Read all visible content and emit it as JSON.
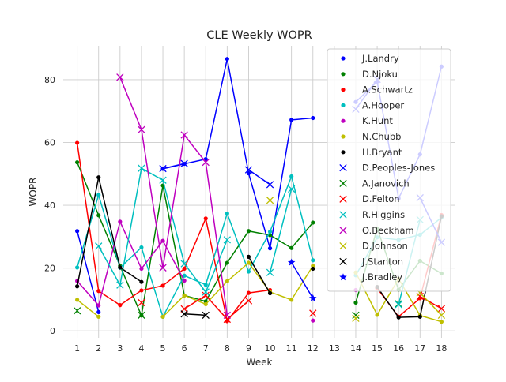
{
  "chart_data": {
    "type": "line",
    "title": "CLE Weekly WOPR",
    "xlabel": "Week",
    "ylabel": "WOPR",
    "xlim": [
      0.35,
      18.65
    ],
    "ylim": [
      -2.2,
      90.8
    ],
    "xticks": [
      1,
      2,
      3,
      4,
      5,
      6,
      7,
      8,
      9,
      10,
      11,
      12,
      13,
      14,
      15,
      16,
      17,
      18
    ],
    "yticks": [
      0,
      20,
      40,
      60,
      80
    ],
    "grid": true,
    "legend_position": "upper right",
    "series": [
      {
        "name": "J.Landry",
        "color": "#0000ff",
        "marker": "dot",
        "x": [
          1,
          2,
          5,
          6,
          7,
          8,
          9,
          10,
          11,
          12,
          14,
          15,
          16,
          17,
          18
        ],
        "y": [
          31.8,
          6.0,
          51.6,
          53.2,
          54.7,
          86.6,
          50.2,
          26.3,
          67.2,
          67.8,
          72.9,
          79.4,
          42.2,
          56.2,
          84.2
        ]
      },
      {
        "name": "D.Njoku",
        "color": "#008000",
        "marker": "dot",
        "x": [
          1,
          2,
          3,
          4,
          5,
          6,
          7,
          8,
          9,
          10,
          11,
          12,
          14,
          15,
          16,
          17,
          18
        ],
        "y": [
          53.7,
          36.8,
          20.7,
          4.9,
          46.3,
          11.3,
          9.4,
          21.7,
          31.8,
          30.5,
          26.4,
          34.5,
          9.0,
          32.6,
          13.1,
          22.3,
          18.3
        ]
      },
      {
        "name": "A.Schwartz",
        "color": "#ff0000",
        "marker": "dot",
        "x": [
          1,
          2,
          3,
          4,
          5,
          6,
          7,
          8,
          9,
          10,
          15,
          16,
          17,
          18
        ],
        "y": [
          59.9,
          12.7,
          8.2,
          12.9,
          14.4,
          19.8,
          35.8,
          3.1,
          12.1,
          13.0,
          13.6,
          4.5,
          10.4,
          36.9
        ]
      },
      {
        "name": "A.Hooper",
        "color": "#00bfbf",
        "marker": "dot",
        "x": [
          1,
          2,
          3,
          4,
          5,
          6,
          7,
          8,
          9,
          10,
          11,
          12,
          14,
          15,
          16,
          17,
          18
        ],
        "y": [
          20.2,
          43.3,
          20.1,
          26.6,
          4.5,
          17.6,
          14.7,
          37.4,
          18.9,
          31.6,
          49.2,
          22.5,
          17.7,
          29.8,
          29.0,
          30.6,
          36.1
        ]
      },
      {
        "name": "K.Hunt",
        "color": "#bf00bf",
        "marker": "dot",
        "x": [
          1,
          2,
          3,
          4,
          5,
          6,
          12,
          14
        ],
        "y": [
          15.9,
          8.1,
          34.8,
          19.8,
          28.7,
          16.0,
          3.3,
          13.0
        ]
      },
      {
        "name": "N.Chubb",
        "color": "#bfbf00",
        "marker": "dot",
        "x": [
          1,
          2,
          5,
          6,
          7,
          8,
          9,
          10,
          11,
          12,
          14,
          15,
          16,
          17,
          18
        ],
        "y": [
          9.9,
          4.5,
          4.5,
          11.3,
          8.5,
          15.8,
          21.7,
          12.4,
          9.9,
          20.7,
          18.6,
          5.1,
          16.6,
          4.9,
          2.9
        ]
      },
      {
        "name": "H.Bryant",
        "color": "#000000",
        "marker": "dot",
        "x": [
          1,
          2,
          3,
          4,
          9,
          10,
          12,
          15,
          16,
          17,
          18
        ],
        "y": [
          14.2,
          48.9,
          20.2,
          15.6,
          23.6,
          12.0,
          19.8,
          14.0,
          4.3,
          4.5,
          36.5
        ]
      },
      {
        "name": "D.Peoples-Jones",
        "color": "#0000ff",
        "marker": "x",
        "x": [
          5,
          6,
          9,
          10,
          14,
          15,
          17,
          18
        ],
        "y": [
          51.7,
          53.3,
          51.3,
          46.6,
          70.6,
          80.1,
          42.4,
          28.2
        ]
      },
      {
        "name": "A.Janovich",
        "color": "#008000",
        "marker": "x",
        "x": [
          1,
          4,
          14,
          16
        ],
        "y": [
          6.4,
          5.0,
          5.0,
          8.6
        ]
      },
      {
        "name": "D.Felton",
        "color": "#ff0000",
        "marker": "x",
        "x": [
          4,
          6,
          7,
          8,
          9,
          12,
          17,
          18
        ],
        "y": [
          9.0,
          7.0,
          11.3,
          3.7,
          9.6,
          5.6,
          11.0,
          7.1
        ]
      },
      {
        "name": "R.Higgins",
        "color": "#00bfbf",
        "marker": "x",
        "x": [
          2,
          3,
          4,
          5,
          6,
          7,
          8,
          10,
          11,
          16,
          17
        ],
        "y": [
          27.0,
          14.6,
          51.8,
          48.0,
          21.4,
          12.4,
          29.0,
          18.6,
          45.2,
          8.4,
          35.4
        ]
      },
      {
        "name": "O.Beckham",
        "color": "#bf00bf",
        "marker": "x",
        "x": [
          3,
          4,
          5,
          6,
          7,
          8
        ],
        "y": [
          80.8,
          64.1,
          20.1,
          62.4,
          53.7,
          5.0
        ]
      },
      {
        "name": "D.Johnson",
        "color": "#bfbf00",
        "marker": "x",
        "x": [
          10,
          14,
          17,
          18
        ],
        "y": [
          41.6,
          4.0,
          12.1,
          5.0
        ]
      },
      {
        "name": "J.Stanton",
        "color": "#000000",
        "marker": "x",
        "x": [
          6,
          7
        ],
        "y": [
          5.4,
          5.0
        ]
      },
      {
        "name": "J.Bradley",
        "color": "#0000ff",
        "marker": "star",
        "x": [
          11,
          12
        ],
        "y": [
          21.8,
          10.4
        ]
      }
    ]
  }
}
